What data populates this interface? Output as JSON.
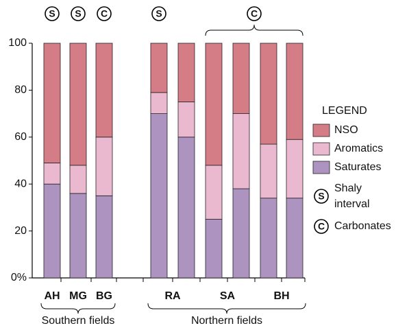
{
  "chart_data": {
    "type": "stacked-bar",
    "categories": [
      "AH",
      "MG",
      "BG",
      "RA",
      null,
      "SA",
      null,
      "BH",
      null
    ],
    "series": [
      {
        "name": "Saturates",
        "color": "#ad93bf",
        "values": [
          40,
          36,
          35,
          70,
          60,
          25,
          38,
          34,
          34
        ]
      },
      {
        "name": "Aromatics",
        "color": "#eab8cf",
        "values": [
          9,
          12,
          25,
          9,
          15,
          23,
          32,
          23,
          25
        ]
      },
      {
        "name": "NSO",
        "color": "#d47d86",
        "values": [
          51,
          52,
          40,
          21,
          25,
          52,
          30,
          43,
          41
        ]
      }
    ],
    "ylim": [
      0,
      100
    ],
    "yticks": [
      {
        "value": 0,
        "label": "0%"
      },
      20,
      40,
      60,
      80,
      100
    ],
    "legend_title": "LEGEND",
    "symbols": [
      {
        "symbol": "S",
        "label": "Shaly interval"
      },
      {
        "symbol": "C",
        "label": "Carbonates"
      }
    ],
    "annotations": [
      {
        "text": "S",
        "span": [
          0,
          0
        ]
      },
      {
        "text": "S",
        "span": [
          1,
          1
        ]
      },
      {
        "text": "C",
        "span": [
          2,
          2
        ]
      },
      {
        "text": "S",
        "span": [
          3,
          3
        ]
      },
      {
        "text": "C",
        "span": [
          5,
          8
        ]
      }
    ],
    "groups": [
      {
        "label": "Southern fields",
        "span": [
          0,
          2
        ]
      },
      {
        "label": "Northern fields",
        "span": [
          3,
          8
        ]
      }
    ]
  }
}
